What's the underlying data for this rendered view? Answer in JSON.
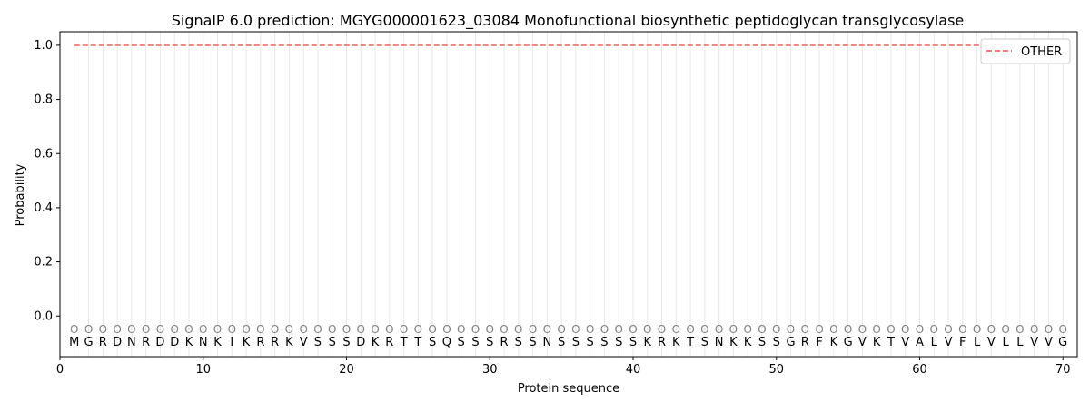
{
  "chart_data": {
    "type": "line",
    "title": "SignalP 6.0 prediction: MGYG000001623_03084 Monofunctional biosynthetic peptidoglycan transglycosylase",
    "xlabel": "Protein sequence",
    "ylabel": "Probability",
    "xlim": [
      0,
      71
    ],
    "ylim": [
      -0.15,
      1.05
    ],
    "x_ticks": [
      0,
      10,
      20,
      30,
      40,
      50,
      60,
      70
    ],
    "y_ticks": [
      0.0,
      0.2,
      0.4,
      0.6,
      0.8,
      1.0
    ],
    "grid": "vertical lines at each residue position",
    "legend_position": "top-right",
    "colors": {
      "other": "#f08080",
      "grid": "#e8e8e8",
      "marker": "#808080"
    },
    "sequence": [
      "M",
      "G",
      "R",
      "D",
      "N",
      "R",
      "D",
      "D",
      "K",
      "N",
      "K",
      "I",
      "K",
      "R",
      "R",
      "K",
      "V",
      "S",
      "S",
      "S",
      "D",
      "K",
      "R",
      "T",
      "T",
      "S",
      "Q",
      "S",
      "S",
      "S",
      "R",
      "S",
      "S",
      "N",
      "S",
      "S",
      "S",
      "S",
      "S",
      "S",
      "K",
      "R",
      "K",
      "T",
      "S",
      "N",
      "K",
      "K",
      "S",
      "S",
      "G",
      "R",
      "F",
      "K",
      "G",
      "V",
      "K",
      "T",
      "V",
      "A",
      "L",
      "V",
      "F",
      "L",
      "V",
      "L",
      "L",
      "V",
      "V",
      "G"
    ],
    "marker_labels": [
      "O",
      "O",
      "O",
      "O",
      "O",
      "O",
      "O",
      "O",
      "O",
      "O",
      "O",
      "O",
      "O",
      "O",
      "O",
      "O",
      "O",
      "O",
      "O",
      "O",
      "O",
      "O",
      "O",
      "O",
      "O",
      "O",
      "O",
      "O",
      "O",
      "O",
      "O",
      "O",
      "O",
      "O",
      "O",
      "O",
      "O",
      "O",
      "O",
      "O",
      "O",
      "O",
      "O",
      "O",
      "O",
      "O",
      "O",
      "O",
      "O",
      "O",
      "O",
      "O",
      "O",
      "O",
      "O",
      "O",
      "O",
      "O",
      "O",
      "O",
      "O",
      "O",
      "O",
      "O",
      "O",
      "O",
      "O",
      "O",
      "O",
      "O"
    ],
    "marker_y": -0.05,
    "series": [
      {
        "name": "OTHER",
        "style": "dashed",
        "x_range": [
          1,
          70
        ],
        "y_constant": 1.0
      }
    ]
  }
}
